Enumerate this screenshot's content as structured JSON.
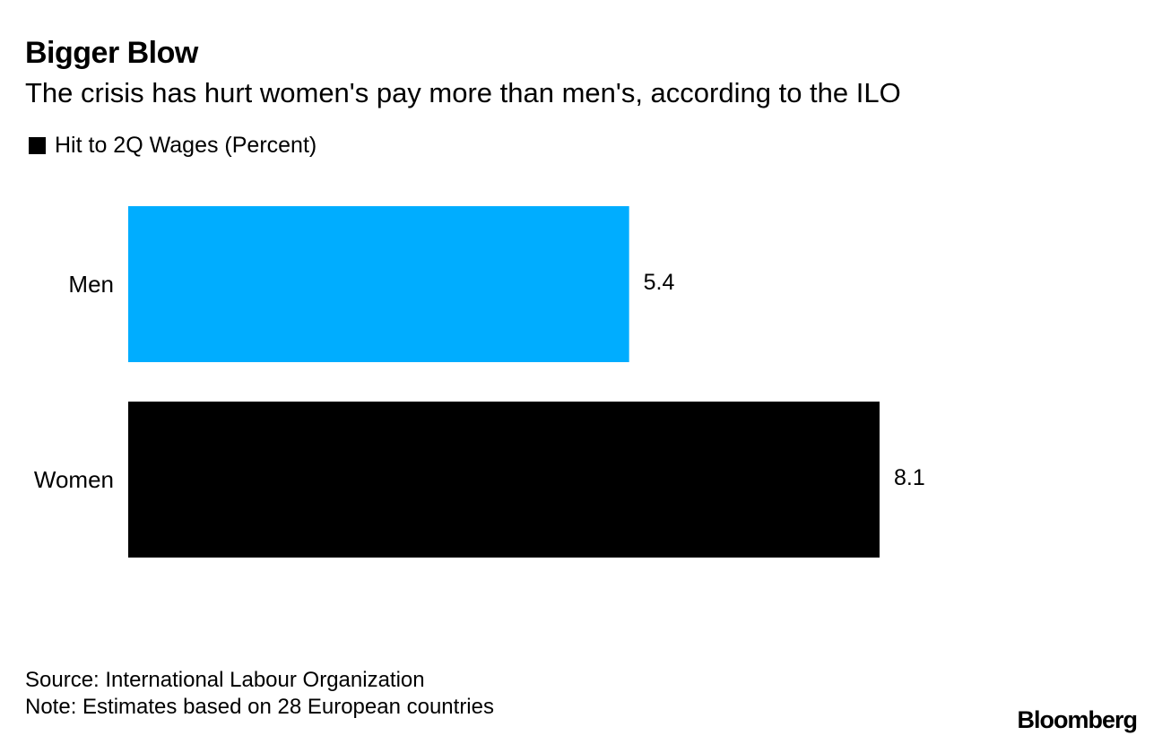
{
  "title": "Bigger Blow",
  "subtitle": "The crisis has hurt women's pay more than men's, according to the ILO",
  "source": "Source: International Labour Organization",
  "note": "Note: Estimates based on 28 European countries",
  "logo": "Bloomberg",
  "colors": {
    "men": "#00adff",
    "women": "#000000",
    "legend": "#000000"
  },
  "chart_data": {
    "type": "bar",
    "orientation": "horizontal",
    "categories": [
      "Men",
      "Women"
    ],
    "series": [
      {
        "name": "Hit to 2Q Wages (Percent)",
        "values": [
          5.4,
          8.1
        ],
        "labels": [
          "5.4",
          "8.1"
        ]
      }
    ],
    "xlim": [
      0,
      8.1
    ],
    "grid": false,
    "legend_position": "top-left"
  }
}
